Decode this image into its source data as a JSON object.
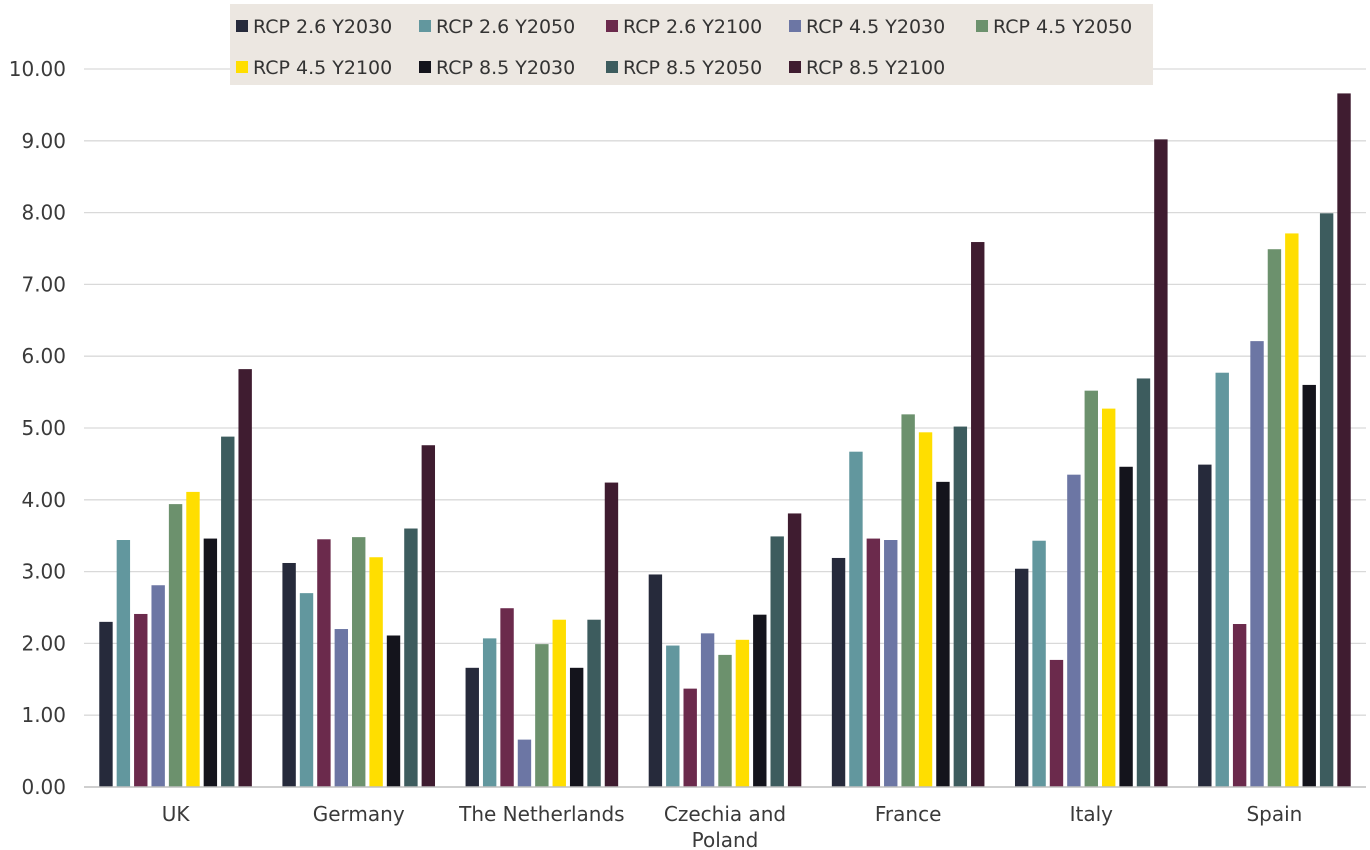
{
  "chart_data": {
    "type": "bar",
    "title": "",
    "xlabel": "",
    "ylabel": "",
    "ylim": [
      0,
      10
    ],
    "yticks": [
      "0.00",
      "1.00",
      "2.00",
      "3.00",
      "4.00",
      "5.00",
      "6.00",
      "7.00",
      "8.00",
      "9.00",
      "10.00"
    ],
    "grid": true,
    "legend_position": "top",
    "categories": [
      [
        "UK"
      ],
      [
        "Germany"
      ],
      [
        "The Netherlands"
      ],
      [
        "Czechia and",
        "Poland"
      ],
      [
        "France"
      ],
      [
        "Italy"
      ],
      [
        "Spain"
      ]
    ],
    "series": [
      {
        "name": "RCP 2.6 Y2030",
        "color": "#262a3b",
        "values": [
          2.3,
          3.12,
          1.66,
          2.96,
          3.19,
          3.04,
          4.49
        ]
      },
      {
        "name": "RCP 2.6 Y2050",
        "color": "#62979e",
        "values": [
          3.44,
          2.7,
          2.07,
          1.97,
          4.67,
          3.43,
          5.77
        ]
      },
      {
        "name": "RCP 2.6 Y2100",
        "color": "#6b2a4c",
        "values": [
          2.41,
          3.45,
          2.49,
          1.37,
          3.46,
          1.77,
          2.27
        ]
      },
      {
        "name": "RCP 4.5 Y2030",
        "color": "#6c76a4",
        "values": [
          2.81,
          2.2,
          0.66,
          2.14,
          3.44,
          4.35,
          6.21
        ]
      },
      {
        "name": "RCP 4.5 Y2050",
        "color": "#6c916d",
        "values": [
          3.94,
          3.48,
          1.99,
          1.84,
          5.19,
          5.52,
          7.49
        ]
      },
      {
        "name": "RCP 4.5 Y2100",
        "color": "#ffde00",
        "values": [
          4.11,
          3.2,
          2.33,
          2.05,
          4.94,
          5.27,
          7.71
        ]
      },
      {
        "name": "RCP 8.5 Y2030",
        "color": "#14141c",
        "values": [
          3.46,
          2.11,
          1.66,
          2.4,
          4.25,
          4.46,
          5.6
        ]
      },
      {
        "name": "RCP 8.5 Y2050",
        "color": "#3d5c5e",
        "values": [
          4.88,
          3.6,
          2.33,
          3.49,
          5.02,
          5.69,
          7.99
        ]
      },
      {
        "name": "RCP 8.5 Y2100",
        "color": "#3f1c30",
        "values": [
          5.82,
          4.76,
          4.24,
          3.81,
          7.59,
          9.02,
          9.66
        ]
      }
    ],
    "legend_background": "#ece7e1"
  }
}
